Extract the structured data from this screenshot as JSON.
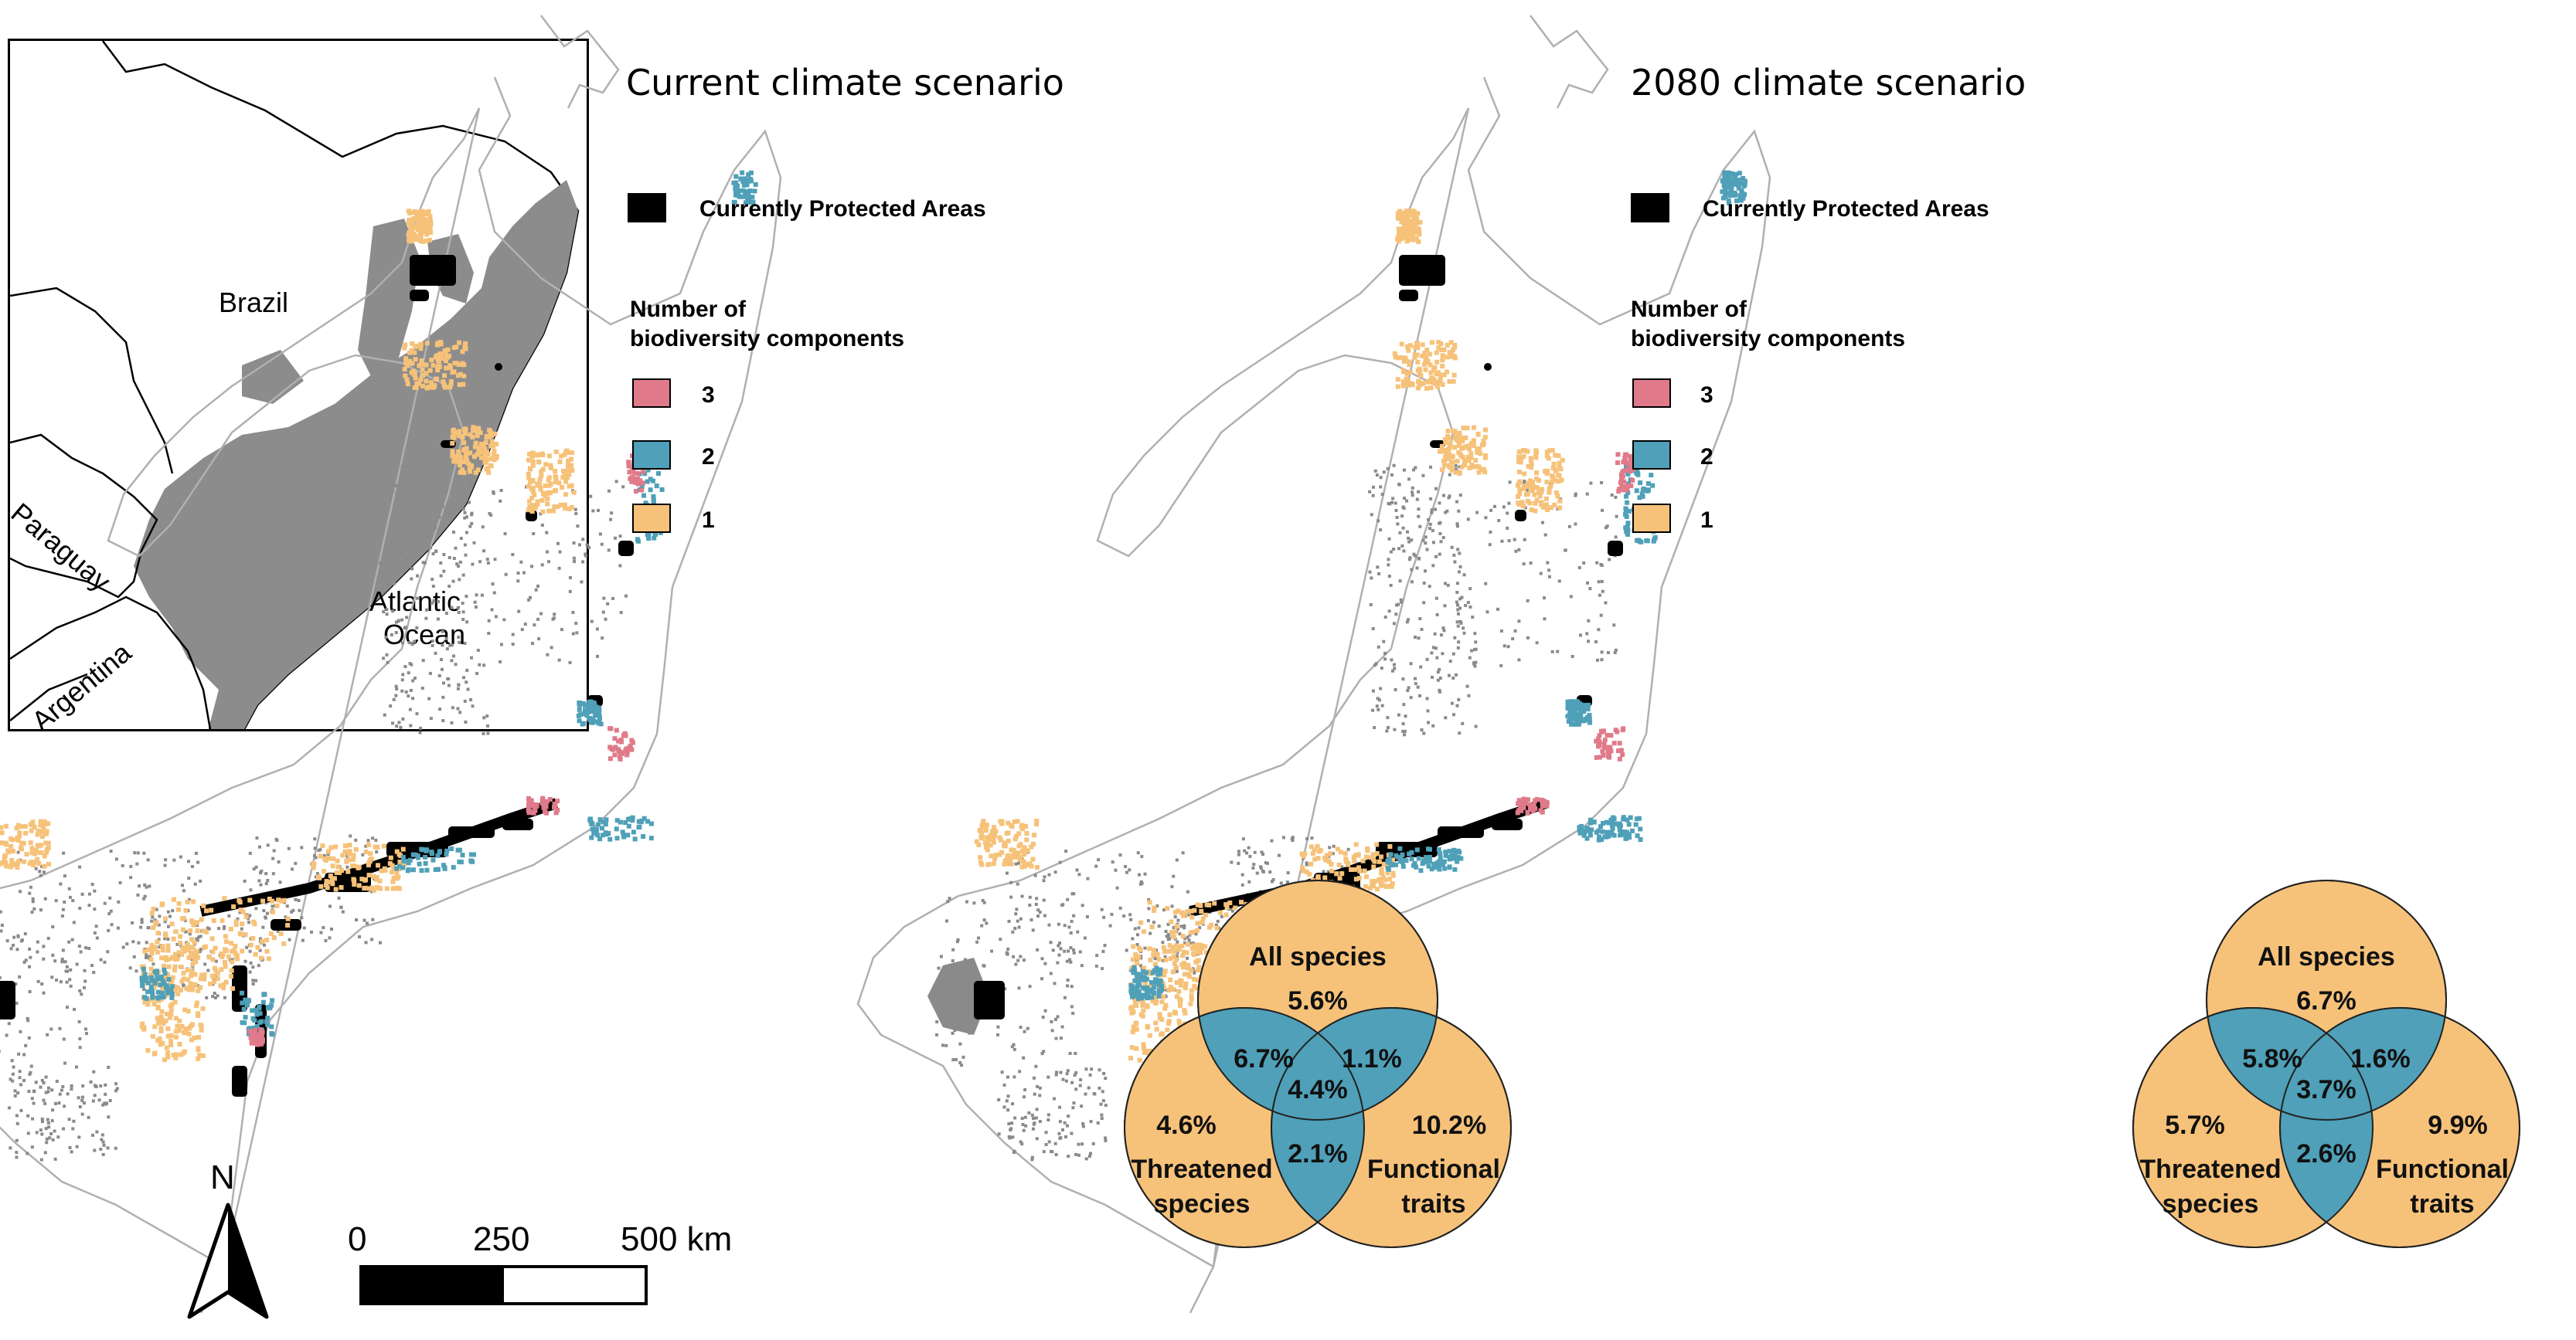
{
  "inset_map": {
    "labels": {
      "brazil": "Brazil",
      "paraguay": "Paraguay",
      "argentina": "Argentina",
      "ocean_line1": "Atlantic",
      "ocean_line2": "Ocean"
    }
  },
  "panels": [
    {
      "title": "Current climate scenario",
      "legend": {
        "protected_label": "Currently Protected Areas",
        "components_title_line1": "Number of",
        "components_title_line2": "biodiversity components",
        "classes": [
          {
            "label": "3",
            "color": "#e07a8a"
          },
          {
            "label": "2",
            "color": "#4fa0b8"
          },
          {
            "label": "1",
            "color": "#f6c27a"
          }
        ]
      },
      "venn": {
        "all_species": "All species",
        "threatened_line1": "Threatened",
        "threatened_line2": "species",
        "functional_line1": "Functional",
        "functional_line2": "traits",
        "all_only": "5.6%",
        "threatened_only": "4.6%",
        "functional_only": "10.2%",
        "all_threatened": "6.7%",
        "all_functional": "1.1%",
        "threatened_functional": "2.1%",
        "center": "4.4%"
      }
    },
    {
      "title": "2080 climate scenario",
      "legend": {
        "protected_label": "Currently Protected Areas",
        "components_title_line1": "Number of",
        "components_title_line2": "biodiversity components",
        "classes": [
          {
            "label": "3",
            "color": "#e07a8a"
          },
          {
            "label": "2",
            "color": "#4fa0b8"
          },
          {
            "label": "1",
            "color": "#f6c27a"
          }
        ]
      },
      "venn": {
        "all_species": "All species",
        "threatened_line1": "Threatened",
        "threatened_line2": "species",
        "functional_line1": "Functional",
        "functional_line2": "traits",
        "all_only": "6.7%",
        "threatened_only": "5.7%",
        "functional_only": "9.9%",
        "all_threatened": "5.8%",
        "all_functional": "1.6%",
        "threatened_functional": "2.6%",
        "center": "3.7%"
      }
    }
  ],
  "north_arrow": {
    "label": "N"
  },
  "scale_bar": {
    "tick_0": "0",
    "tick_1": "250",
    "tick_2": "500 km"
  },
  "colors": {
    "protected": "#000000",
    "outline": "#b0b0b0",
    "forest_gray": "#8a8a8a",
    "inset_fill": "#8c8c8c"
  }
}
